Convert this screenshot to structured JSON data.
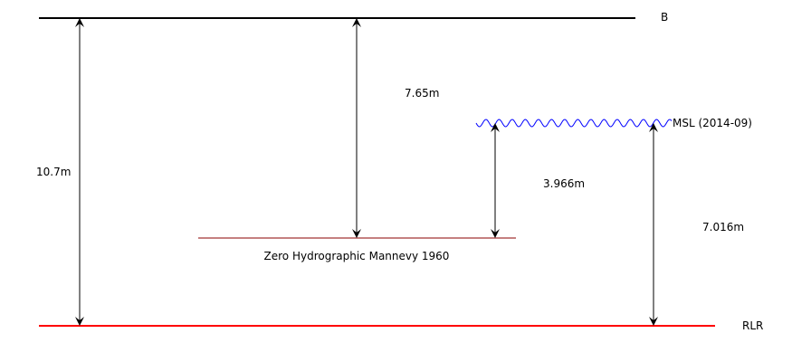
{
  "diagram": {
    "levels": {
      "b": {
        "label": "B",
        "color": "#000000"
      },
      "msl": {
        "label": "MSL (2014-09)",
        "color": "#0000ff"
      },
      "zero_hydro": {
        "label": "Zero Hydrographic Mannevy 1960",
        "color": "#8b0000"
      },
      "rlr": {
        "label": "RLR",
        "color": "#ff0000"
      }
    },
    "measurements": {
      "b_to_rlr": "10.7m",
      "b_to_zero": "7.65m",
      "zero_to_msl": "3.966m",
      "rlr_to_msl": "7.016m"
    },
    "arrow_color": "#000000"
  }
}
